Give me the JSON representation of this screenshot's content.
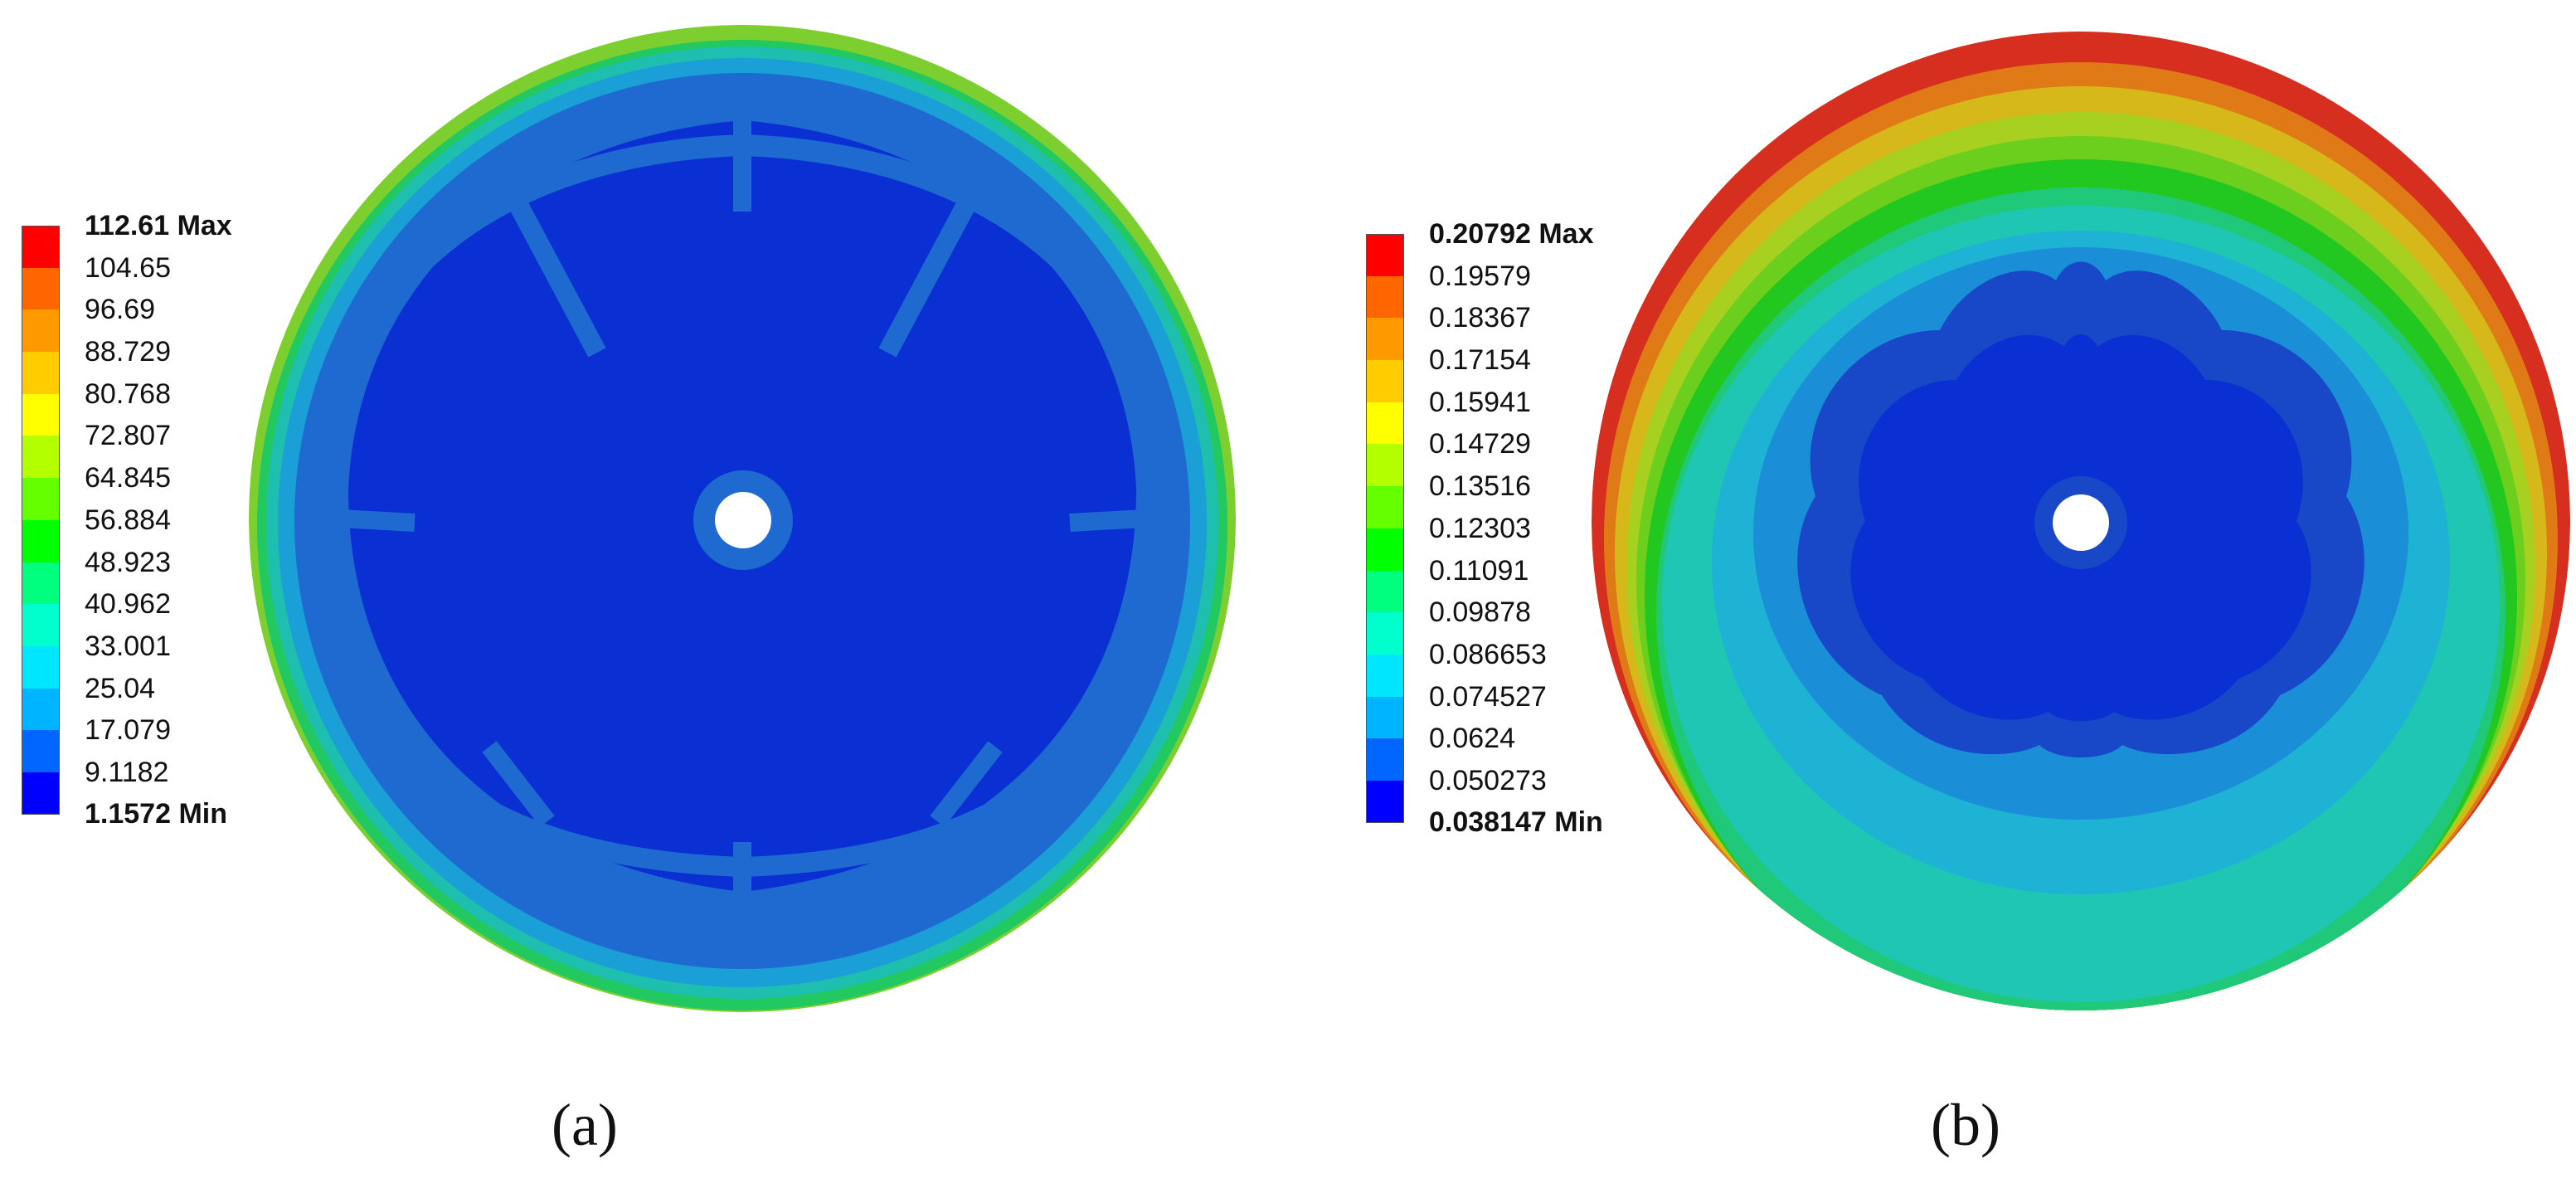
{
  "palette": [
    "#0000ff",
    "#0066ff",
    "#00b4ff",
    "#00e6ff",
    "#00ffcc",
    "#00ff7f",
    "#00ff00",
    "#66ff00",
    "#b3ff00",
    "#ffff00",
    "#ffcc00",
    "#ff9900",
    "#ff6600",
    "#ff0000"
  ],
  "panels": [
    {
      "caption": "(a)",
      "legend": {
        "max_label": "112.61 Max",
        "min_label": "1.1572 Min",
        "values": [
          "104.65",
          "96.69",
          "88.729",
          "80.768",
          "72.807",
          "64.845",
          "56.884",
          "48.923",
          "40.962",
          "33.001",
          "25.04",
          "17.079",
          "9.1182"
        ]
      }
    },
    {
      "caption": "(b)",
      "legend": {
        "max_label": "0.20792 Max",
        "min_label": "0.038147 Min",
        "values": [
          "0.19579",
          "0.18367",
          "0.17154",
          "0.15941",
          "0.14729",
          "0.13516",
          "0.12303",
          "0.11091",
          "0.09878",
          "0.086653",
          "0.074527",
          "0.0624",
          "0.050273"
        ]
      }
    }
  ]
}
